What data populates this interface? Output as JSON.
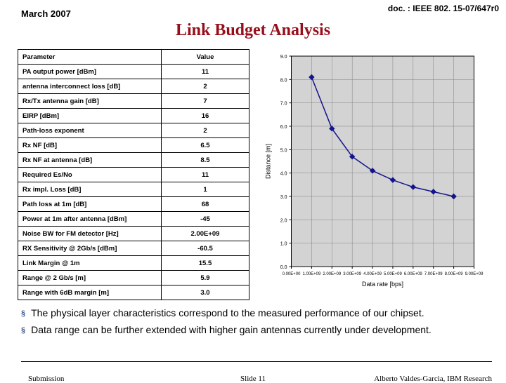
{
  "header": {
    "date": "March 2007",
    "docref": "doc. : IEEE 802. 15-07/647r0"
  },
  "title": "Link Budget Analysis",
  "table": {
    "headers": [
      "Parameter",
      "Value"
    ],
    "rows": [
      [
        "PA output power [dBm]",
        "11"
      ],
      [
        "antenna interconnect loss [dB]",
        "2"
      ],
      [
        "Rx/Tx antenna gain [dB]",
        "7"
      ],
      [
        "EIRP [dBm]",
        "16"
      ],
      [
        "Path-loss exponent",
        "2"
      ],
      [
        "Rx NF [dB]",
        "6.5"
      ],
      [
        "Rx NF at antenna [dB]",
        "8.5"
      ],
      [
        "Required Es/No",
        "11"
      ],
      [
        "Rx impl. Loss [dB]",
        "1"
      ],
      [
        "Path loss at 1m [dB]",
        "68"
      ],
      [
        "Power at 1m after antenna [dBm]",
        "-45"
      ],
      [
        "Noise BW for FM detector [Hz]",
        "2.00E+09"
      ],
      [
        "RX Sensitivity @ 2Gb/s [dBm]",
        "-60.5"
      ],
      [
        "Link Margin @ 1m",
        "15.5"
      ],
      [
        "Range @ 2 Gb/s [m]",
        "5.9"
      ],
      [
        "Range with 6dB margin [m]",
        "3.0"
      ]
    ]
  },
  "chart": {
    "type": "line",
    "ylabel": "Distance [m]",
    "xlabel": "Data rate [bps]",
    "ylim": [
      0,
      9
    ],
    "ytick_step": 1,
    "xticks": [
      "0.00E+00",
      "1.00E+09",
      "2.00E+09",
      "3.00E+09",
      "4.00E+09",
      "5.00E+09",
      "6.00E+09",
      "7.00E+09",
      "8.00E+09",
      "9.00E+09"
    ],
    "series": [
      {
        "x": 1000000000.0,
        "y": 8.1
      },
      {
        "x": 2000000000.0,
        "y": 5.9
      },
      {
        "x": 3000000000.0,
        "y": 4.7
      },
      {
        "x": 4000000000.0,
        "y": 4.1
      },
      {
        "x": 5000000000.0,
        "y": 3.7
      },
      {
        "x": 6000000000.0,
        "y": 3.4
      },
      {
        "x": 7000000000.0,
        "y": 3.2
      },
      {
        "x": 8000000000.0,
        "y": 3.0
      }
    ],
    "marker": "diamond",
    "line_color": "#14148c",
    "marker_color": "#14148c",
    "grid_color": "#808080",
    "background_color": "#d3d3d3",
    "plot_area_color": "#d3d3d3",
    "axis_color": "#000000",
    "tick_fontsize": 7,
    "label_fontsize": 9
  },
  "bullets": [
    "The physical layer characteristics correspond to the measured performance of our chipset.",
    "Data range can be further extended with higher gain antennas currently under development."
  ],
  "footer": {
    "left": "Submission",
    "center": "Slide 11",
    "right": "Alberto Valdes-Garcia, IBM Research"
  }
}
